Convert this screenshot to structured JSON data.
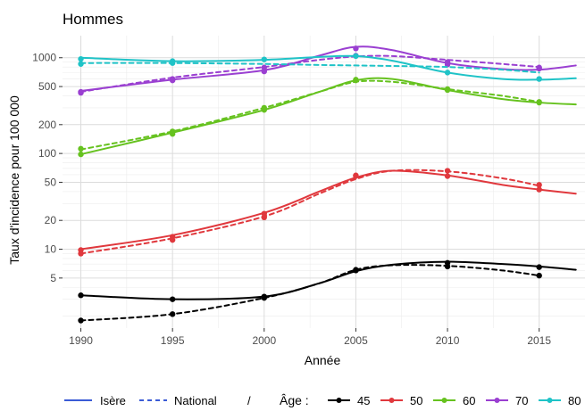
{
  "chart_data": {
    "type": "line",
    "title": "Hommes",
    "xlabel": "Année",
    "ylabel": "Taux d'incidence pour 100 000",
    "y_scale": "log",
    "xlim": [
      1989,
      2017.5
    ],
    "ylim": [
      1.5,
      1700
    ],
    "x_ticks": [
      1990,
      1995,
      2000,
      2005,
      2010,
      2015
    ],
    "x_tick_labels": [
      "1990",
      "1995",
      "2000",
      "2005",
      "2010",
      "2015"
    ],
    "y_ticks": [
      5,
      10,
      20,
      50,
      100,
      200,
      500,
      1000
    ],
    "y_tick_labels": [
      "5",
      "10",
      "20",
      "50",
      "100",
      "200",
      "500",
      "1000"
    ],
    "grid": true,
    "legend_position": "bottom",
    "legend": {
      "linetype_items": [
        {
          "label": "Isère",
          "style": "solid"
        },
        {
          "label": "National",
          "style": "dashed"
        }
      ],
      "separator": "/",
      "color_title": "Âge :",
      "color_items": [
        {
          "label": "45",
          "color": "#000000"
        },
        {
          "label": "50",
          "color": "#e0383d"
        },
        {
          "label": "60",
          "color": "#66c21f"
        },
        {
          "label": "70",
          "color": "#9a3fd1"
        },
        {
          "label": "80",
          "color": "#1fc3c7"
        }
      ]
    },
    "point_years": [
      1990,
      1995,
      2000,
      2005,
      2010,
      2015
    ],
    "series": [
      {
        "age": "45",
        "source": "Isère",
        "color": "#000000",
        "style": "solid",
        "x": [
          1990,
          1995,
          2000,
          2003,
          2005,
          2007,
          2010,
          2013,
          2015,
          2017
        ],
        "y": [
          3.3,
          3.0,
          3.2,
          4.4,
          5.9,
          6.9,
          7.4,
          7.0,
          6.6,
          6.1
        ],
        "points_x": [
          1990,
          1995,
          2000,
          2005,
          2010,
          2015
        ],
        "points_y": [
          3.3,
          3.0,
          3.2,
          6.0,
          7.2,
          6.5
        ]
      },
      {
        "age": "45",
        "source": "National",
        "color": "#000000",
        "style": "dashed",
        "x": [
          1990,
          1995,
          2000,
          2003,
          2005,
          2007,
          2010,
          2013,
          2015
        ],
        "y": [
          1.8,
          2.1,
          3.1,
          4.4,
          6.1,
          6.8,
          6.7,
          6.0,
          5.3
        ],
        "points_x": [
          1990,
          1995,
          2000,
          2005,
          2010,
          2015
        ],
        "points_y": [
          1.8,
          2.1,
          3.1,
          6.1,
          6.6,
          5.3
        ]
      },
      {
        "age": "50",
        "source": "Isère",
        "color": "#e0383d",
        "style": "solid",
        "x": [
          1990,
          1995,
          2000,
          2003,
          2005,
          2007,
          2010,
          2013,
          2015,
          2017
        ],
        "y": [
          10.0,
          14.0,
          24.0,
          40.0,
          56.0,
          66.0,
          59.0,
          47.0,
          42.0,
          38.0
        ],
        "points_x": [
          1990,
          1995,
          2000,
          2005,
          2010,
          2015
        ],
        "points_y": [
          9.8,
          13.5,
          23.5,
          59.0,
          58.0,
          42.0
        ]
      },
      {
        "age": "50",
        "source": "National",
        "color": "#e0383d",
        "style": "dashed",
        "x": [
          1990,
          1995,
          2000,
          2003,
          2005,
          2007,
          2010,
          2013,
          2015
        ],
        "y": [
          9.0,
          13.0,
          22.0,
          38.0,
          54.0,
          66.0,
          65.0,
          55.0,
          46.0
        ],
        "points_x": [
          1990,
          1995,
          2000,
          2005,
          2010,
          2015
        ],
        "points_y": [
          9.0,
          12.5,
          21.5,
          58.0,
          66.0,
          47.0
        ]
      },
      {
        "age": "60",
        "source": "Isère",
        "color": "#66c21f",
        "style": "solid",
        "x": [
          1990,
          1995,
          2000,
          2003,
          2005,
          2007,
          2010,
          2013,
          2015,
          2017
        ],
        "y": [
          98,
          165,
          285,
          440,
          580,
          600,
          460,
          370,
          340,
          325
        ],
        "points_x": [
          1990,
          1995,
          2000,
          2005,
          2010,
          2015
        ],
        "points_y": [
          98,
          160,
          285,
          590,
          460,
          340
        ]
      },
      {
        "age": "60",
        "source": "National",
        "color": "#66c21f",
        "style": "dashed",
        "x": [
          1990,
          1995,
          2000,
          2003,
          2005,
          2007,
          2010,
          2013,
          2015
        ],
        "y": [
          110,
          170,
          300,
          440,
          560,
          560,
          470,
          400,
          345
        ],
        "points_x": [
          1990,
          1995,
          2000,
          2005,
          2010,
          2015
        ],
        "points_y": [
          112,
          170,
          300,
          580,
          470,
          345
        ]
      },
      {
        "age": "70",
        "source": "Isère",
        "color": "#9a3fd1",
        "style": "solid",
        "x": [
          1990,
          1995,
          2000,
          2003,
          2005,
          2007,
          2010,
          2013,
          2015,
          2017
        ],
        "y": [
          450,
          590,
          740,
          1050,
          1300,
          1200,
          880,
          760,
          750,
          830
        ],
        "points_x": [
          1990,
          1995,
          2000,
          2005,
          2010,
          2015
        ],
        "points_y": [
          440,
          580,
          720,
          1250,
          850,
          770
        ]
      },
      {
        "age": "70",
        "source": "National",
        "color": "#9a3fd1",
        "style": "dashed",
        "x": [
          1990,
          1995,
          2000,
          2003,
          2005,
          2007,
          2010,
          2013,
          2015
        ],
        "y": [
          440,
          620,
          800,
          950,
          1030,
          1040,
          950,
          860,
          800
        ],
        "points_x": [
          1990,
          1995,
          2000,
          2005,
          2010,
          2015
        ],
        "points_y": [
          430,
          600,
          790,
          1050,
          900,
          790
        ]
      },
      {
        "age": "80",
        "source": "Isère",
        "color": "#1fc3c7",
        "style": "solid",
        "x": [
          1990,
          1995,
          2000,
          2003,
          2005,
          2007,
          2010,
          2013,
          2015,
          2017
        ],
        "y": [
          1000,
          920,
          950,
          1020,
          1040,
          930,
          700,
          600,
          590,
          610
        ],
        "points_x": [
          1990,
          1995,
          2000,
          2005,
          2010,
          2015
        ],
        "points_y": [
          970,
          920,
          960,
          1040,
          700,
          600
        ]
      },
      {
        "age": "80",
        "source": "National",
        "color": "#1fc3c7",
        "style": "dashed",
        "x": [
          1990,
          1995,
          2000,
          2003,
          2005,
          2007,
          2010,
          2013,
          2015
        ],
        "y": [
          880,
          880,
          860,
          840,
          830,
          820,
          800,
          750,
          700
        ],
        "points_x": [
          1990,
          1995
        ],
        "points_y": [
          860,
          880
        ]
      }
    ]
  }
}
